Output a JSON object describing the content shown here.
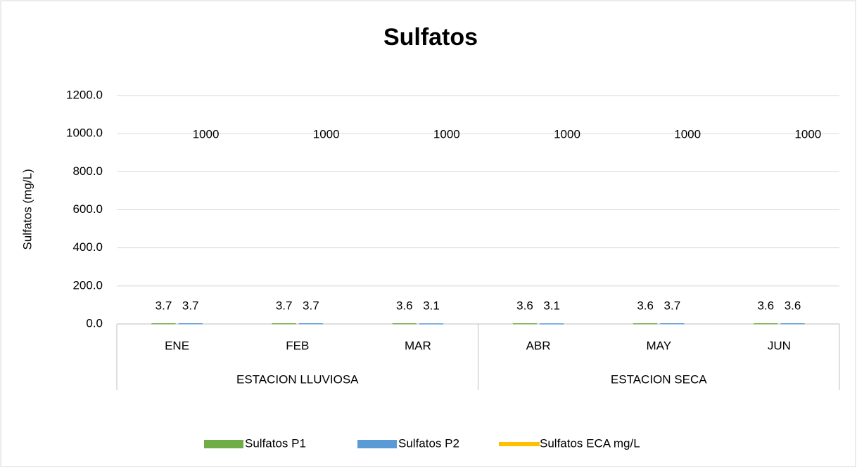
{
  "chart_data": {
    "type": "bar",
    "title": "Sulfatos",
    "y_label": "Sulfatos (mg/L)",
    "categories": [
      "ENE",
      "FEB",
      "MAR",
      "ABR",
      "MAY",
      "JUN"
    ],
    "groups": [
      {
        "name": "ESTACION LLUVIOSA",
        "count": 3
      },
      {
        "name": "ESTACION SECA",
        "count": 3
      }
    ],
    "series": [
      {
        "name": "Sulfatos  P1",
        "type": "bar",
        "color": "#70ad47",
        "values": [
          3.7,
          3.7,
          3.6,
          3.6,
          3.6,
          3.6
        ]
      },
      {
        "name": "Sulfatos P2",
        "type": "bar",
        "color": "#5b9bd5",
        "values": [
          3.7,
          3.7,
          3.1,
          3.1,
          3.7,
          3.6
        ]
      },
      {
        "name": "Sulfatos ECA mg/L",
        "type": "line",
        "color": "#ffc000",
        "values": [
          1000,
          1000,
          1000,
          1000,
          1000,
          1000
        ]
      }
    ],
    "ylim": [
      0,
      1200
    ],
    "yticks": [
      {
        "value": 0,
        "label": "0.0"
      },
      {
        "value": 200,
        "label": "200.0"
      },
      {
        "value": 400,
        "label": "400.0"
      },
      {
        "value": 600,
        "label": "600.0"
      },
      {
        "value": 800,
        "label": "800.0"
      },
      {
        "value": 1000,
        "label": "1000.0"
      },
      {
        "value": 1200,
        "label": "1200.0"
      }
    ],
    "grid": true,
    "legend": "bottom"
  }
}
